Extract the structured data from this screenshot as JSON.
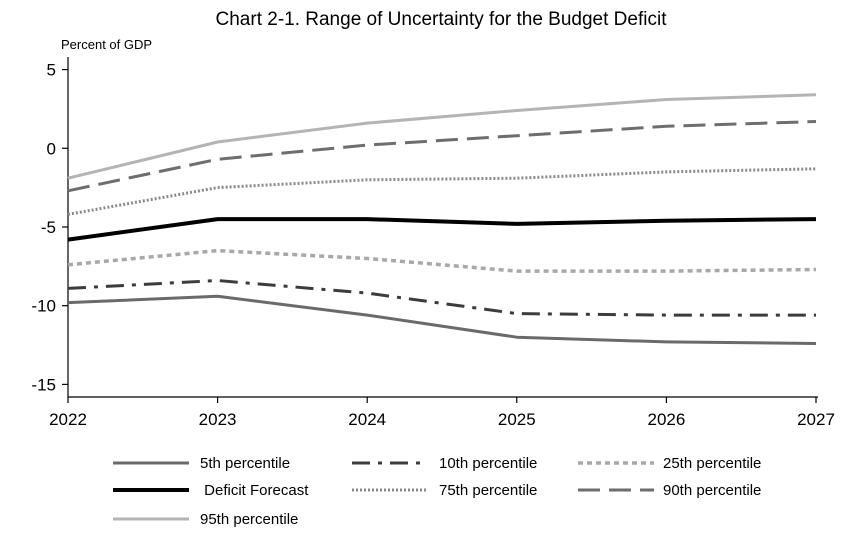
{
  "chart_data": {
    "type": "line",
    "title": "Chart 2-1. Range of Uncertainty for the Budget Deficit",
    "ylabel": "Percent of GDP",
    "xlabel": "",
    "x": [
      2022,
      2023,
      2024,
      2025,
      2026,
      2027
    ],
    "xlim": [
      2022,
      2027
    ],
    "ylim": [
      -15.8,
      5.8
    ],
    "yticks": [
      5,
      0,
      -5,
      -10,
      -15
    ],
    "grid": false,
    "legend_position": "bottom",
    "series": [
      {
        "name": "5th percentile",
        "values": [
          -9.8,
          -9.4,
          -10.6,
          -12.0,
          -12.3,
          -12.4
        ],
        "color": "#6a6a6a",
        "style": "solid",
        "width": 3
      },
      {
        "name": "10th percentile",
        "values": [
          -8.9,
          -8.4,
          -9.2,
          -10.5,
          -10.6,
          -10.6
        ],
        "color": "#3c3c3c",
        "style": "dashdot",
        "width": 3
      },
      {
        "name": "25th percentile",
        "values": [
          -7.4,
          -6.5,
          -7.0,
          -7.8,
          -7.8,
          -7.7
        ],
        "color": "#a8a8a8",
        "style": "dot",
        "width": 3.5
      },
      {
        "name": " Deficit Forecast",
        "values": [
          -5.8,
          -4.5,
          -4.5,
          -4.8,
          -4.6,
          -4.5
        ],
        "color": "#000000",
        "style": "solid",
        "width": 4
      },
      {
        "name": "75th percentile",
        "values": [
          -4.2,
          -2.5,
          -2.0,
          -1.9,
          -1.5,
          -1.3
        ],
        "color": "#8a8a8a",
        "style": "finedot",
        "width": 3
      },
      {
        "name": "90th percentile",
        "values": [
          -2.7,
          -0.7,
          0.2,
          0.8,
          1.4,
          1.7
        ],
        "color": "#6e6e6e",
        "style": "dash",
        "width": 3
      },
      {
        "name": "95th percentile",
        "values": [
          -1.9,
          0.4,
          1.6,
          2.4,
          3.1,
          3.4
        ],
        "color": "#b4b4b4",
        "style": "solid",
        "width": 3
      }
    ]
  }
}
